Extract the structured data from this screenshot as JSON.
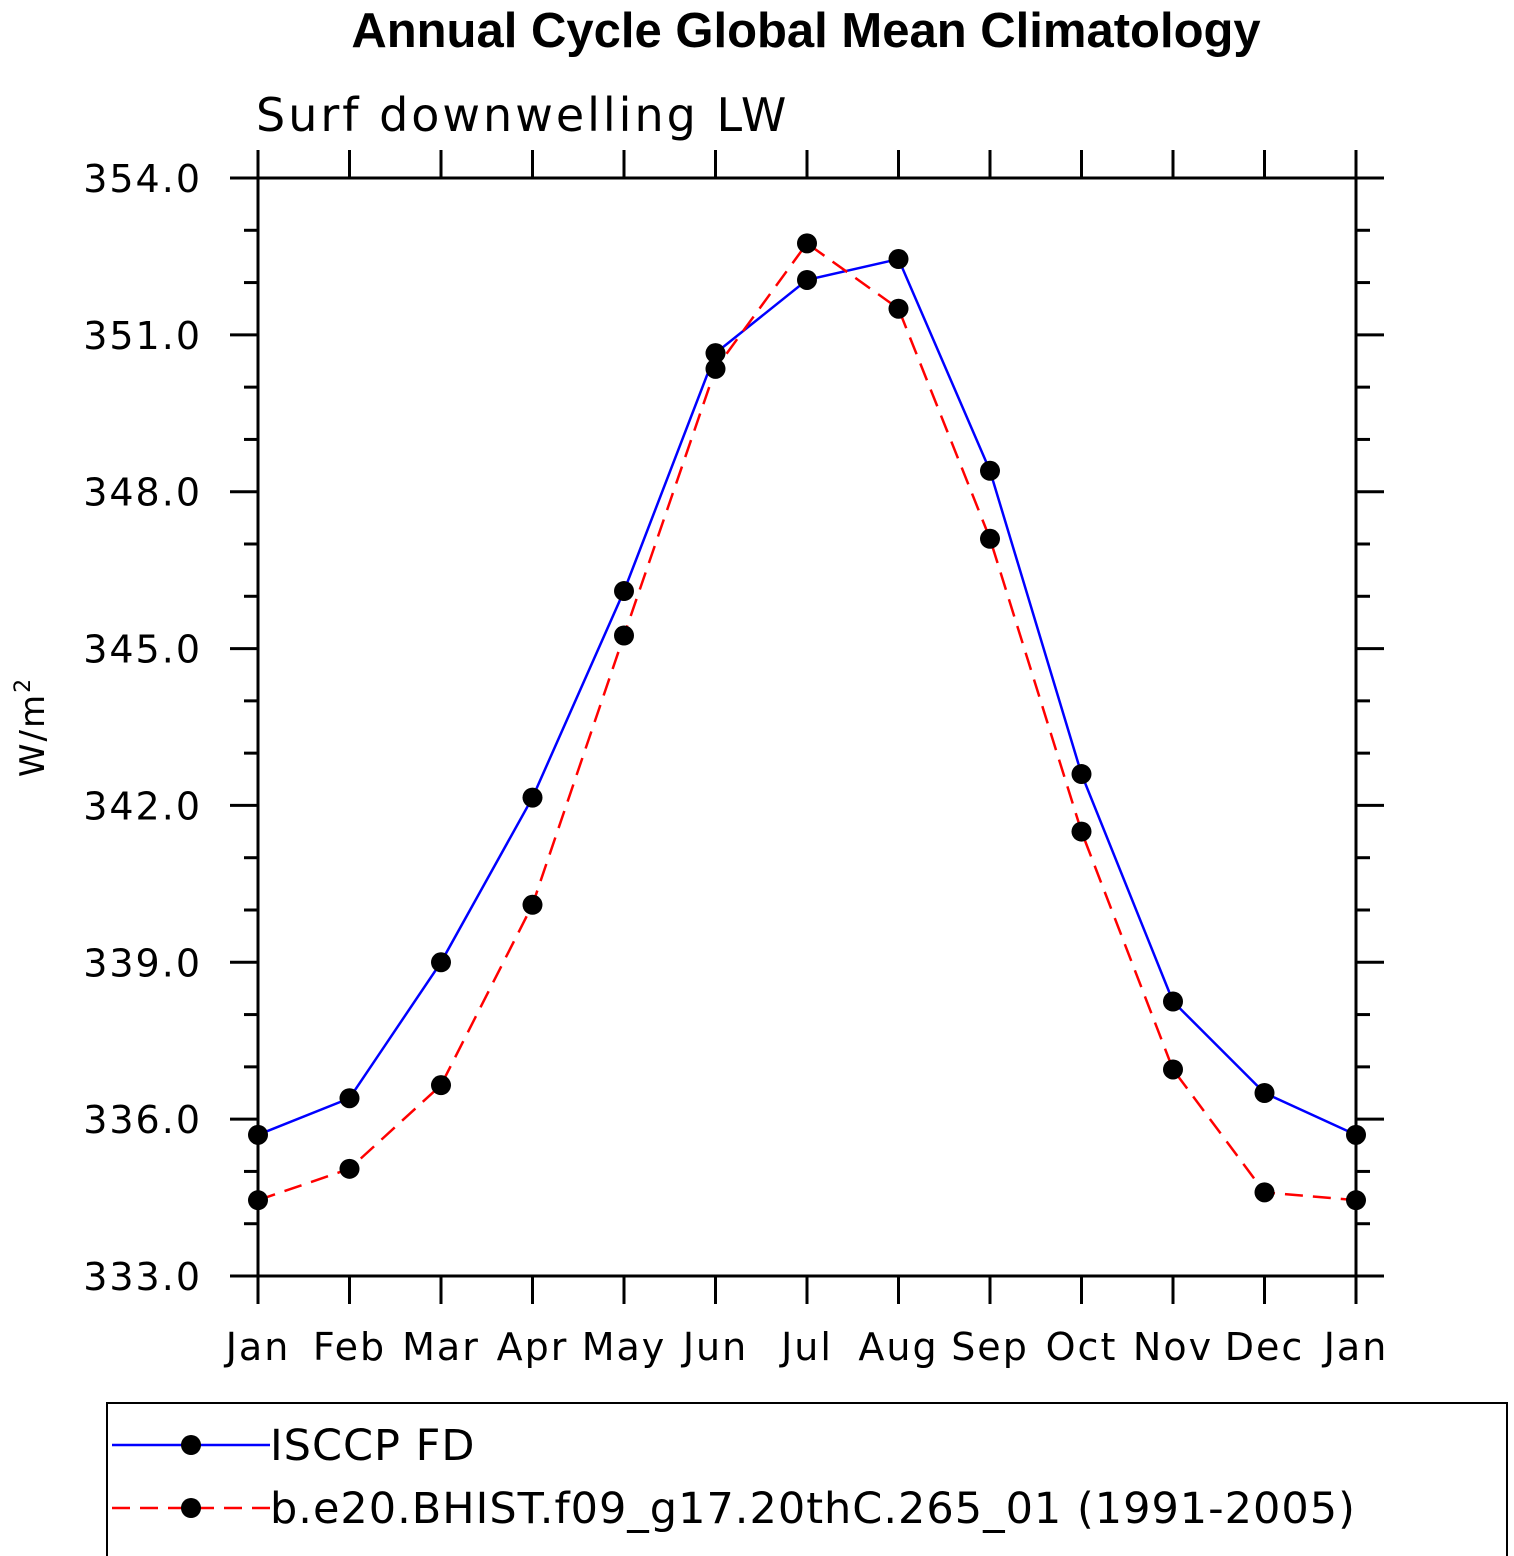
{
  "chart_data": {
    "type": "line",
    "title": "Annual Cycle Global Mean Climatology",
    "subtitle": "Surf downwelling LW",
    "ylabel": "W/m",
    "ylabel_superscript": "2",
    "xlabel": "",
    "categories": [
      "Jan",
      "Feb",
      "Mar",
      "Apr",
      "May",
      "Jun",
      "Jul",
      "Aug",
      "Sep",
      "Oct",
      "Nov",
      "Dec",
      "Jan"
    ],
    "ylim": [
      333.0,
      354.0
    ],
    "yticks": [
      "333.0",
      "336.0",
      "339.0",
      "342.0",
      "345.0",
      "348.0",
      "351.0",
      "354.0"
    ],
    "grid": false,
    "legend_position": "bottom",
    "series": [
      {
        "name": "ISCCP FD",
        "color": "#0000ff",
        "style": "solid",
        "values": [
          335.7,
          336.4,
          339.0,
          342.15,
          346.1,
          350.65,
          352.05,
          352.45,
          348.4,
          342.6,
          338.25,
          336.5,
          335.7
        ]
      },
      {
        "name": "b.e20.BHIST.f09_g17.20thC.265_01 (1991-2005)",
        "color": "#ff0000",
        "style": "dashed",
        "values": [
          334.45,
          335.05,
          336.65,
          340.1,
          345.25,
          350.35,
          352.75,
          351.5,
          347.1,
          341.5,
          336.95,
          334.6,
          334.45
        ]
      }
    ]
  }
}
